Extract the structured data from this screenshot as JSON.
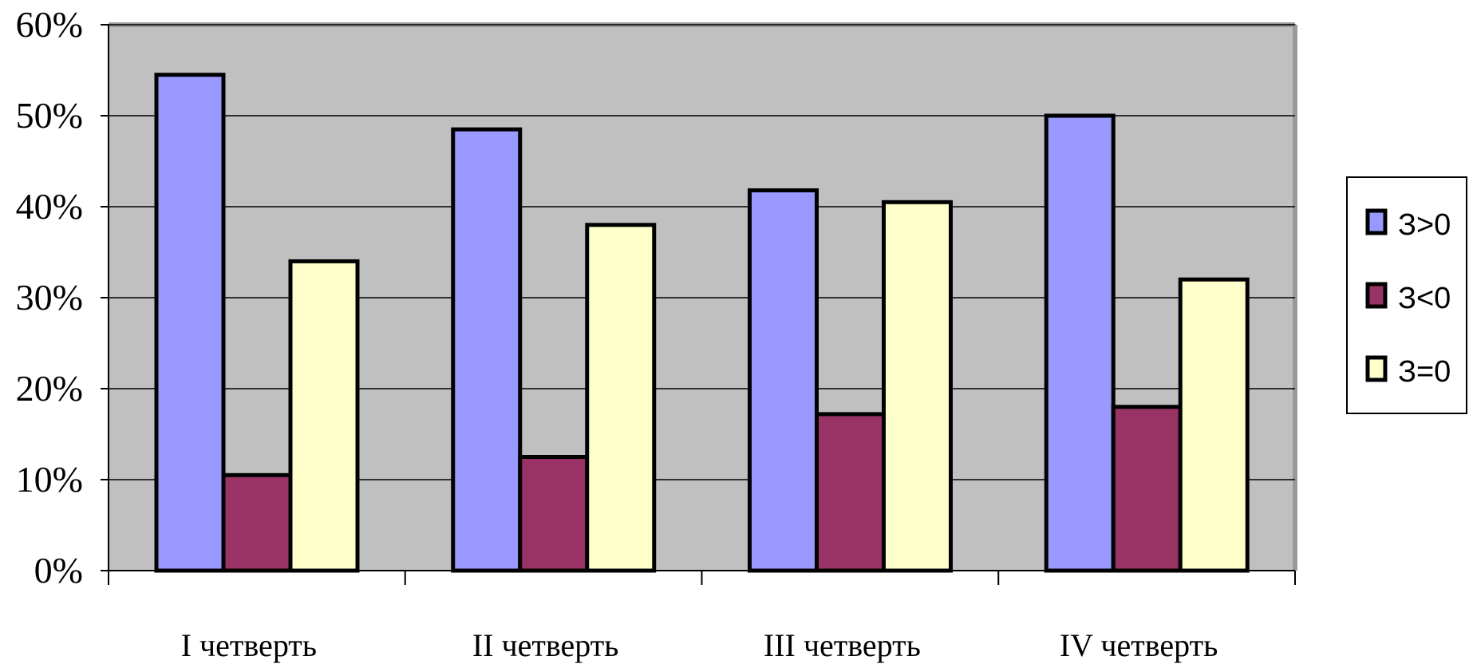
{
  "chart_data": {
    "type": "bar",
    "title": "",
    "xlabel": "",
    "ylabel": "",
    "categories": [
      "I четверть",
      "II четверть",
      "III четверть",
      "IV четверть"
    ],
    "yticks": [
      "0%",
      "10%",
      "20%",
      "30%",
      "40%",
      "50%",
      "60%"
    ],
    "ylim": [
      0,
      60
    ],
    "grid": true,
    "legend_position": "right",
    "plot_background": "#C0C0C0",
    "series": [
      {
        "name": "З>0",
        "color": "#9999FF",
        "values": [
          54.5,
          48.5,
          41.8,
          50
        ]
      },
      {
        "name": "З<0",
        "color": "#993366",
        "values": [
          10.5,
          12.5,
          17.2,
          18
        ]
      },
      {
        "name": "З=0",
        "color": "#FFFFCC",
        "values": [
          34,
          38,
          40.5,
          32
        ]
      }
    ]
  }
}
